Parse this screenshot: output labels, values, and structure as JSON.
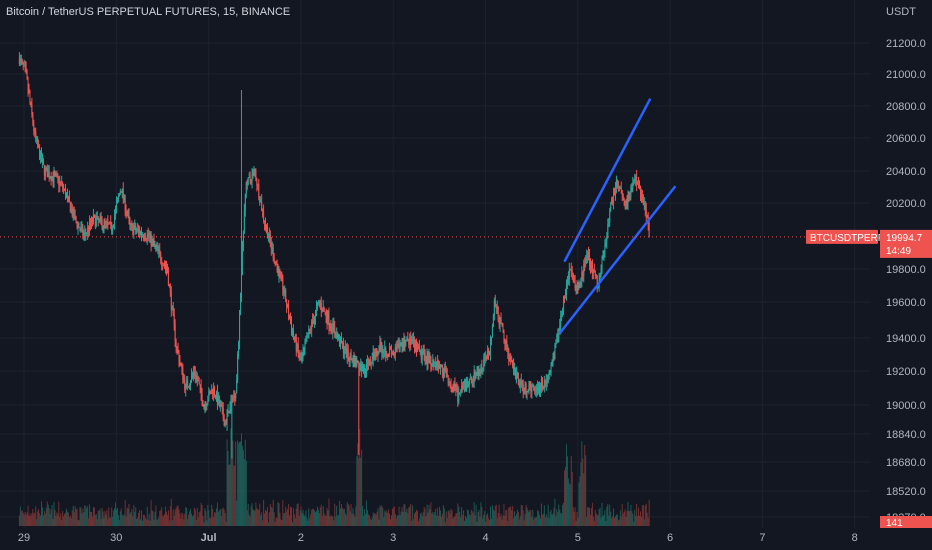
{
  "header": {
    "title": "Bitcoin / TetherUS PERPETUAL FUTURES, 15, BINANCE"
  },
  "colors": {
    "background": "#131722",
    "up": "#26a69a",
    "down": "#ef5350",
    "trendline": "#2962ff",
    "price_line": "#ef5350"
  },
  "chart_data": {
    "type": "candlestick",
    "y_axis": {
      "unit": "USDT",
      "ticks": [
        21200.0,
        21000.0,
        20800.0,
        20600.0,
        20400.0,
        20200.0,
        19800.0,
        19600.0,
        19400.0,
        19200.0,
        19000.0,
        18840.0,
        18680.0,
        18520.0,
        18370.0
      ],
      "tick_labels": [
        "21200.0",
        "21000.0",
        "20800.0",
        "20600.0",
        "20400.0",
        "20200.0",
        "19800.0",
        "19600.0",
        "19400.0",
        "19200.0",
        "19000.0",
        "18840.0",
        "18680.0",
        "18520.0",
        "18370.0"
      ]
    },
    "x_axis": {
      "labels": [
        {
          "day": 0,
          "label": "29"
        },
        {
          "day": 1,
          "label": "30"
        },
        {
          "day": 2,
          "label": "Jul"
        },
        {
          "day": 3,
          "label": "2"
        },
        {
          "day": 4,
          "label": "3"
        },
        {
          "day": 5,
          "label": "4"
        },
        {
          "day": 6,
          "label": "5"
        },
        {
          "day": 7,
          "label": "6"
        },
        {
          "day": 8,
          "label": "7"
        },
        {
          "day": 9,
          "label": "8"
        }
      ]
    },
    "last_price": {
      "symbol": "BTCUSDTPERP",
      "value": 19994.7,
      "label": "19994.7",
      "countdown": "14:49"
    },
    "volume_tag": "141",
    "price_path": [
      {
        "t": -0.05,
        "p": 21100
      },
      {
        "t": 0.02,
        "p": 21000
      },
      {
        "t": 0.12,
        "p": 20600
      },
      {
        "t": 0.22,
        "p": 20400
      },
      {
        "t": 0.35,
        "p": 20350
      },
      {
        "t": 0.42,
        "p": 20300
      },
      {
        "t": 0.55,
        "p": 20100
      },
      {
        "t": 0.65,
        "p": 20000
      },
      {
        "t": 0.75,
        "p": 20100
      },
      {
        "t": 0.95,
        "p": 20050
      },
      {
        "t": 1.05,
        "p": 20300
      },
      {
        "t": 1.15,
        "p": 20050
      },
      {
        "t": 1.35,
        "p": 20000
      },
      {
        "t": 1.55,
        "p": 19800
      },
      {
        "t": 1.65,
        "p": 19350
      },
      {
        "t": 1.75,
        "p": 19100
      },
      {
        "t": 1.85,
        "p": 19200
      },
      {
        "t": 1.95,
        "p": 19000
      },
      {
        "t": 2.05,
        "p": 19100
      },
      {
        "t": 2.18,
        "p": 18900
      },
      {
        "t": 2.3,
        "p": 19100
      },
      {
        "t": 2.4,
        "p": 20300
      },
      {
        "t": 2.5,
        "p": 20400
      },
      {
        "t": 2.6,
        "p": 20100
      },
      {
        "t": 2.72,
        "p": 19850
      },
      {
        "t": 2.8,
        "p": 19700
      },
      {
        "t": 2.9,
        "p": 19450
      },
      {
        "t": 3.0,
        "p": 19250
      },
      {
        "t": 3.1,
        "p": 19450
      },
      {
        "t": 3.2,
        "p": 19600
      },
      {
        "t": 3.35,
        "p": 19450
      },
      {
        "t": 3.5,
        "p": 19300
      },
      {
        "t": 3.7,
        "p": 19200
      },
      {
        "t": 3.85,
        "p": 19350
      },
      {
        "t": 4.0,
        "p": 19300
      },
      {
        "t": 4.15,
        "p": 19400
      },
      {
        "t": 4.3,
        "p": 19300
      },
      {
        "t": 4.45,
        "p": 19250
      },
      {
        "t": 4.55,
        "p": 19200
      },
      {
        "t": 4.7,
        "p": 19050
      },
      {
        "t": 4.85,
        "p": 19150
      },
      {
        "t": 4.95,
        "p": 19200
      },
      {
        "t": 5.05,
        "p": 19350
      },
      {
        "t": 5.1,
        "p": 19600
      },
      {
        "t": 5.2,
        "p": 19400
      },
      {
        "t": 5.3,
        "p": 19200
      },
      {
        "t": 5.4,
        "p": 19100
      },
      {
        "t": 5.55,
        "p": 19100
      },
      {
        "t": 5.68,
        "p": 19150
      },
      {
        "t": 5.78,
        "p": 19400
      },
      {
        "t": 5.86,
        "p": 19650
      },
      {
        "t": 5.92,
        "p": 19800
      },
      {
        "t": 6.0,
        "p": 19650
      },
      {
        "t": 6.1,
        "p": 19900
      },
      {
        "t": 6.22,
        "p": 19700
      },
      {
        "t": 6.32,
        "p": 20050
      },
      {
        "t": 6.42,
        "p": 20350
      },
      {
        "t": 6.52,
        "p": 20200
      },
      {
        "t": 6.62,
        "p": 20350
      },
      {
        "t": 6.72,
        "p": 20200
      },
      {
        "t": 6.78,
        "p": 19994.7
      }
    ],
    "trendlines": [
      {
        "x1": 5.86,
        "y1": 19850,
        "x2": 6.78,
        "y2": 20840
      },
      {
        "x1": 5.81,
        "y1": 19430,
        "x2": 7.05,
        "y2": 20300
      }
    ]
  }
}
